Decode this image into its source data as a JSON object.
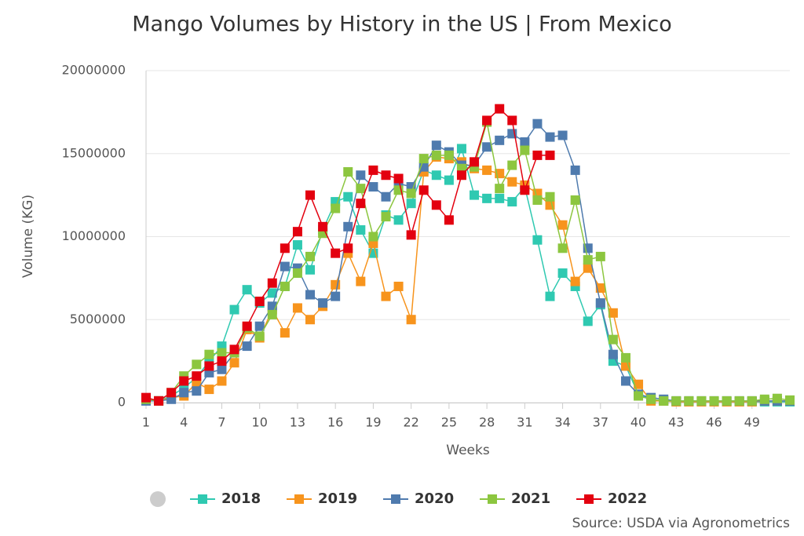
{
  "chart_data": {
    "type": "line",
    "title": "Mango Volumes by History in the US | From Mexico",
    "x_label": "Weeks",
    "y_label": "Volume (KG)",
    "source": "Source: USDA via Agronometrics",
    "x": [
      1,
      2,
      3,
      4,
      5,
      6,
      7,
      8,
      9,
      10,
      11,
      12,
      13,
      14,
      15,
      16,
      17,
      18,
      19,
      20,
      21,
      22,
      23,
      24,
      25,
      26,
      27,
      28,
      29,
      30,
      31,
      32,
      33,
      34,
      35,
      36,
      37,
      38,
      39,
      40,
      41,
      42,
      43,
      44,
      45,
      46,
      47,
      48,
      49,
      50,
      51,
      52
    ],
    "xlim": [
      1,
      52
    ],
    "xticks": [
      1,
      4,
      7,
      10,
      13,
      16,
      19,
      22,
      25,
      28,
      31,
      34,
      37,
      40,
      43,
      46,
      49
    ],
    "ylim": [
      0,
      20000000
    ],
    "yticks": [
      0,
      5000000,
      10000000,
      15000000,
      20000000
    ],
    "grid": true,
    "series": [
      {
        "name": "2018",
        "color": "#2fc9b1",
        "values": [
          200000,
          100000,
          400000,
          900000,
          1500000,
          2500000,
          3400000,
          5600000,
          6800000,
          6000000,
          6600000,
          7000000,
          9500000,
          8000000,
          10400000,
          12100000,
          12400000,
          10400000,
          9000000,
          11300000,
          11000000,
          12000000,
          14000000,
          13700000,
          13400000,
          15300000,
          12500000,
          12300000,
          12300000,
          12100000,
          13000000,
          9800000,
          6400000,
          7800000,
          7000000,
          4900000,
          5900000,
          2500000,
          2200000,
          500000,
          200000,
          100000,
          50000,
          50000,
          50000,
          50000,
          50000,
          50000,
          50000,
          50000,
          50000,
          50000
        ]
      },
      {
        "name": "2019",
        "color": "#f7941d",
        "values": [
          200000,
          100000,
          300000,
          400000,
          1200000,
          800000,
          1300000,
          2400000,
          4400000,
          3900000,
          5600000,
          4200000,
          5700000,
          5000000,
          5800000,
          7100000,
          9000000,
          7300000,
          9600000,
          6400000,
          7000000,
          5000000,
          13900000,
          14800000,
          14700000,
          14500000,
          14100000,
          14000000,
          13800000,
          13300000,
          13100000,
          12600000,
          11900000,
          10700000,
          7300000,
          8100000,
          6900000,
          5400000,
          2200000,
          1100000,
          100000,
          100000,
          50000,
          50000,
          50000,
          50000,
          50000,
          50000,
          50000,
          100000,
          100000,
          100000
        ]
      },
      {
        "name": "2020",
        "color": "#4f7bae",
        "values": [
          100000,
          100000,
          200000,
          600000,
          700000,
          1800000,
          2000000,
          3000000,
          3400000,
          4600000,
          5800000,
          8200000,
          8100000,
          6500000,
          6000000,
          6400000,
          10600000,
          13700000,
          13000000,
          12400000,
          13200000,
          13000000,
          14200000,
          15500000,
          15100000,
          14300000,
          14300000,
          15400000,
          15800000,
          16200000,
          15700000,
          16800000,
          16000000,
          16100000,
          14000000,
          9300000,
          6000000,
          2900000,
          1300000,
          500000,
          300000,
          200000,
          100000,
          100000,
          100000,
          100000,
          100000,
          100000,
          100000,
          100000,
          100000,
          100000
        ]
      },
      {
        "name": "2021",
        "color": "#8cc63f",
        "values": [
          200000,
          100000,
          600000,
          1600000,
          2300000,
          2900000,
          3000000,
          3000000,
          4500000,
          4000000,
          5300000,
          7000000,
          7800000,
          8800000,
          10200000,
          11700000,
          13900000,
          12900000,
          10000000,
          11200000,
          12800000,
          12600000,
          14700000,
          14900000,
          14900000,
          14100000,
          14200000,
          16900000,
          12900000,
          14300000,
          15200000,
          12200000,
          12400000,
          9300000,
          12200000,
          8600000,
          8800000,
          3800000,
          2700000,
          400000,
          200000,
          100000,
          100000,
          100000,
          100000,
          100000,
          100000,
          100000,
          100000,
          200000,
          250000,
          150000
        ]
      },
      {
        "name": "2022",
        "color": "#e3000f",
        "values": [
          300000,
          100000,
          600000,
          1300000,
          1600000,
          2200000,
          2500000,
          3200000,
          4600000,
          6100000,
          7200000,
          9300000,
          10300000,
          12500000,
          10600000,
          9000000,
          9300000,
          12000000,
          14000000,
          13700000,
          13500000,
          10100000,
          12800000,
          11900000,
          11000000,
          13700000,
          14500000,
          17000000,
          17700000,
          17000000,
          12800000,
          14900000,
          14900000,
          null,
          null,
          null,
          null,
          null,
          null,
          null,
          null,
          null,
          null,
          null,
          null,
          null,
          null,
          null,
          null,
          null,
          null,
          null
        ]
      }
    ]
  }
}
